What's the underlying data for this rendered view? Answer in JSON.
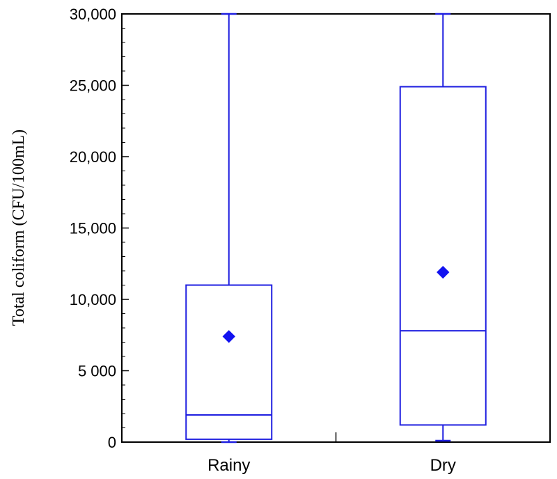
{
  "chart_data": {
    "type": "box",
    "ylabel": "Total coliform (CFU/100mL)",
    "ylim": [
      0,
      30000
    ],
    "y_tick_values": [
      0,
      5000,
      10000,
      15000,
      20000,
      25000,
      30000
    ],
    "y_tick_labels": [
      "0",
      "5 000",
      "10,000",
      "15,000",
      "20,000",
      "25,000",
      "30,000"
    ],
    "categories": [
      "Rainy",
      "Dry"
    ],
    "boxes": [
      {
        "category": "Rainy",
        "min": 0,
        "q1": 200,
        "median": 1900,
        "q3": 11000,
        "max": 30000,
        "mean": 7400
      },
      {
        "category": "Dry",
        "min": 100,
        "q1": 1200,
        "median": 7800,
        "q3": 24900,
        "max": 30000,
        "mean": 11900
      }
    ],
    "box_color": "#1f1fe0",
    "mean_marker_color": "#1212f0",
    "grid": false,
    "frame": "full box"
  }
}
